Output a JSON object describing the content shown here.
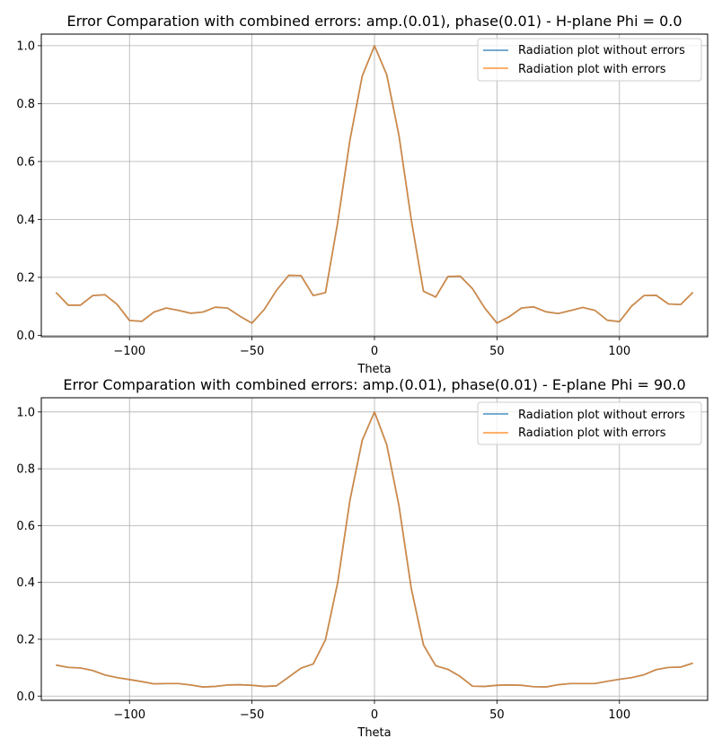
{
  "colors": {
    "series_without": "#1f77b4",
    "series_with": "#ff7f0e",
    "grid": "#b0b0b0"
  },
  "chart_data": [
    {
      "type": "line",
      "title": "Error Comparation with combined errors: amp.(0.01), phase(0.01) - H-plane Phi = 0.0",
      "xlabel": "Theta",
      "ylabel": "",
      "xlim": [
        -136,
        136
      ],
      "ylim": [
        -0.005,
        1.04
      ],
      "xticks": [
        -100,
        -50,
        0,
        50,
        100
      ],
      "yticks": [
        0.0,
        0.2,
        0.4,
        0.6,
        0.8,
        1.0
      ],
      "grid": true,
      "legend": "top-right",
      "x": [
        -130,
        -125,
        -120,
        -115,
        -110,
        -105,
        -100,
        -95,
        -90,
        -85,
        -80,
        -75,
        -70,
        -65,
        -60,
        -55,
        -50,
        -45,
        -40,
        -35,
        -30,
        -25,
        -20,
        -15,
        -10,
        -5,
        0,
        5,
        10,
        15,
        20,
        25,
        30,
        35,
        40,
        45,
        50,
        55,
        60,
        65,
        70,
        75,
        80,
        85,
        90,
        95,
        100,
        105,
        110,
        115,
        120,
        125,
        130
      ],
      "series": [
        {
          "name": "Radiation plot without errors",
          "values": [
            0.148,
            0.104,
            0.104,
            0.137,
            0.14,
            0.106,
            0.051,
            0.048,
            0.08,
            0.094,
            0.086,
            0.076,
            0.08,
            0.097,
            0.094,
            0.066,
            0.042,
            0.089,
            0.155,
            0.207,
            0.206,
            0.137,
            0.147,
            0.39,
            0.675,
            0.895,
            1.0,
            0.9,
            0.69,
            0.4,
            0.152,
            0.132,
            0.203,
            0.204,
            0.161,
            0.094,
            0.042,
            0.064,
            0.094,
            0.098,
            0.081,
            0.075,
            0.085,
            0.096,
            0.086,
            0.052,
            0.047,
            0.101,
            0.137,
            0.138,
            0.108,
            0.106,
            0.148
          ]
        },
        {
          "name": "Radiation plot with errors",
          "values": [
            0.148,
            0.104,
            0.104,
            0.137,
            0.14,
            0.106,
            0.051,
            0.048,
            0.08,
            0.094,
            0.086,
            0.076,
            0.08,
            0.097,
            0.094,
            0.066,
            0.042,
            0.089,
            0.155,
            0.207,
            0.206,
            0.137,
            0.147,
            0.39,
            0.675,
            0.895,
            1.0,
            0.9,
            0.69,
            0.4,
            0.152,
            0.132,
            0.203,
            0.204,
            0.161,
            0.094,
            0.042,
            0.064,
            0.094,
            0.098,
            0.081,
            0.075,
            0.085,
            0.096,
            0.086,
            0.052,
            0.047,
            0.101,
            0.137,
            0.138,
            0.108,
            0.106,
            0.148
          ]
        }
      ]
    },
    {
      "type": "line",
      "title": "Error Comparation with combined errors: amp.(0.01), phase(0.01) - E-plane Phi = 90.0",
      "xlabel": "Theta",
      "ylabel": "",
      "xlim": [
        -136,
        136
      ],
      "ylim": [
        -0.015,
        1.05
      ],
      "xticks": [
        -100,
        -50,
        0,
        50,
        100
      ],
      "yticks": [
        0.0,
        0.2,
        0.4,
        0.6,
        0.8,
        1.0
      ],
      "grid": true,
      "legend": "top-right",
      "x": [
        -130,
        -125,
        -120,
        -115,
        -110,
        -105,
        -100,
        -95,
        -90,
        -85,
        -80,
        -75,
        -70,
        -65,
        -60,
        -55,
        -50,
        -45,
        -40,
        -35,
        -30,
        -25,
        -20,
        -15,
        -10,
        -5,
        0,
        5,
        10,
        15,
        20,
        25,
        30,
        35,
        40,
        45,
        50,
        55,
        60,
        65,
        70,
        75,
        80,
        85,
        90,
        95,
        100,
        105,
        110,
        115,
        120,
        125,
        130
      ],
      "series": [
        {
          "name": "Radiation plot without errors",
          "values": [
            0.109,
            0.101,
            0.099,
            0.09,
            0.074,
            0.065,
            0.058,
            0.051,
            0.043,
            0.044,
            0.044,
            0.039,
            0.032,
            0.034,
            0.039,
            0.04,
            0.038,
            0.034,
            0.036,
            0.067,
            0.098,
            0.113,
            0.198,
            0.4,
            0.69,
            0.9,
            1.0,
            0.885,
            0.67,
            0.38,
            0.18,
            0.107,
            0.094,
            0.069,
            0.035,
            0.034,
            0.038,
            0.039,
            0.038,
            0.033,
            0.032,
            0.04,
            0.044,
            0.044,
            0.044,
            0.052,
            0.059,
            0.065,
            0.075,
            0.093,
            0.101,
            0.102,
            0.116
          ]
        },
        {
          "name": "Radiation plot with errors",
          "values": [
            0.109,
            0.101,
            0.099,
            0.09,
            0.074,
            0.065,
            0.058,
            0.051,
            0.043,
            0.044,
            0.044,
            0.039,
            0.032,
            0.034,
            0.039,
            0.04,
            0.038,
            0.034,
            0.036,
            0.067,
            0.098,
            0.113,
            0.198,
            0.4,
            0.69,
            0.9,
            1.0,
            0.885,
            0.67,
            0.38,
            0.18,
            0.107,
            0.094,
            0.069,
            0.035,
            0.034,
            0.038,
            0.039,
            0.038,
            0.033,
            0.032,
            0.04,
            0.044,
            0.044,
            0.044,
            0.052,
            0.059,
            0.065,
            0.075,
            0.093,
            0.101,
            0.102,
            0.116
          ]
        }
      ]
    }
  ]
}
